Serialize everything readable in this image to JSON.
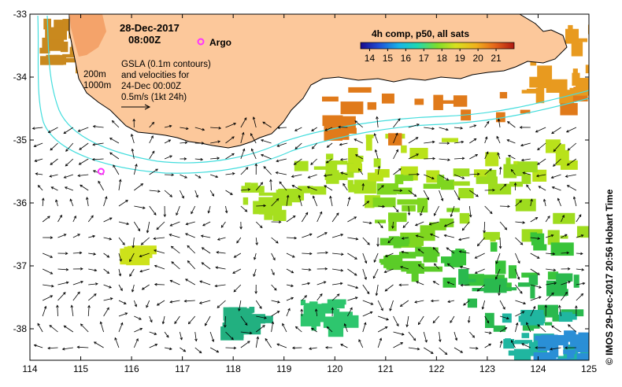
{
  "title": {
    "date": "28-Dec-2017",
    "time": "08:00Z"
  },
  "legend": {
    "argo_label": "Argo",
    "argo_color": "#ff33ff",
    "colorbar_title": "4h comp, p50, all sats",
    "colorbar_ticks": [
      "14",
      "15",
      "16",
      "17",
      "18",
      "19",
      "20",
      "21"
    ],
    "colorbar_range": [
      13.5,
      22
    ]
  },
  "contours": {
    "label_200": "200m",
    "label_1000": "1000m",
    "color": "#44dddd"
  },
  "notes": {
    "line1": "GSLA (0.1m contours)",
    "line2": "and velocities for",
    "line3": "24-Dec 00:00Z",
    "line4": "0.5m/s (1kt 24h)"
  },
  "axes": {
    "x_ticks": [
      "114",
      "115",
      "116",
      "117",
      "118",
      "119",
      "120",
      "121",
      "122",
      "123",
      "124",
      "125"
    ],
    "y_ticks": [
      "-33",
      "-34",
      "-35",
      "-36",
      "-37",
      "-38"
    ],
    "x_range": [
      114,
      125
    ],
    "y_range": [
      -38.5,
      -33
    ]
  },
  "colors": {
    "land": "#fcc89b",
    "coastline": "#000000"
  },
  "argo": {
    "lon": 115.4,
    "lat": -35.5
  },
  "side_label": "© IMOS 29-Dec-2017 20:56 Hobart Time"
}
